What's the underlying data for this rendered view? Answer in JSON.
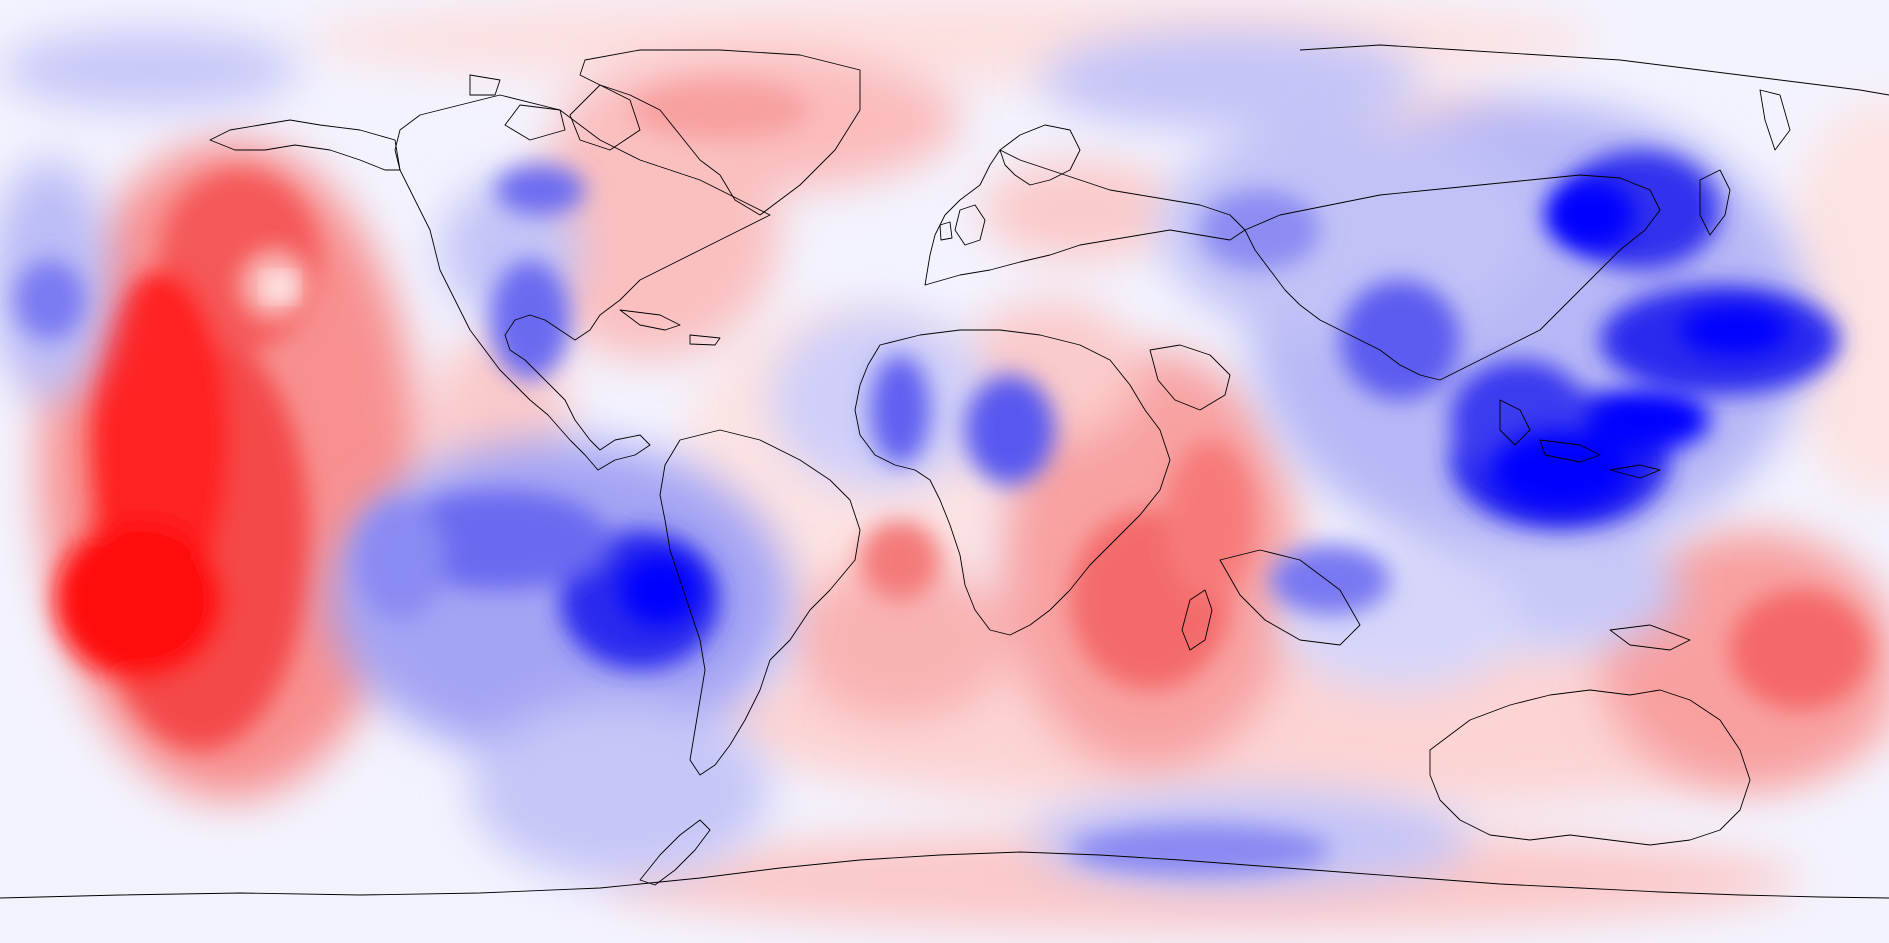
{
  "map": {
    "kind": "global scalar-anomaly field, equirectangular projection (continents shown at a shifted/paleo position)",
    "colormap": {
      "negative": "#0000ff",
      "neutral": "#ffffff",
      "positive": "#ff0000",
      "levels": [
        "#0000ff",
        "#3333f0",
        "#6868ee",
        "#9b9bf3",
        "#c6c6f8",
        "#e9e9fc",
        "#ffffff",
        "#fde6e6",
        "#fbc2c2",
        "#f89595",
        "#f56060",
        "#f43030",
        "#ff0000"
      ]
    },
    "coastline_color": "#000000",
    "labels_printed": "none"
  }
}
